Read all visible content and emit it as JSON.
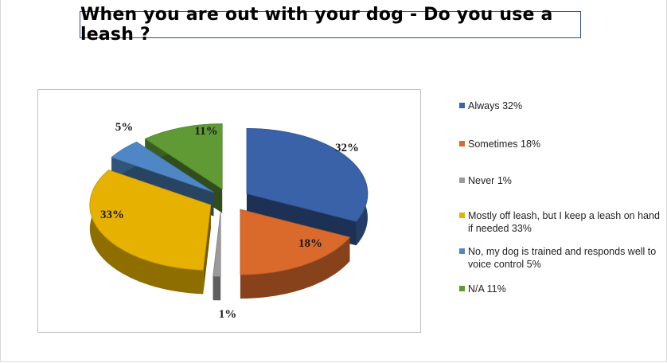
{
  "title": "When you are out with your dog - Do you use a leash ?",
  "chart_data": {
    "type": "pie",
    "style": "3d-exploded",
    "legend_position": "right",
    "slices": [
      {
        "label": "Always 32%",
        "value": 32,
        "data_label": "32%",
        "color": "#3a62a8"
      },
      {
        "label": "Sometimes 18%",
        "value": 18,
        "data_label": "18%",
        "color": "#d96a2b"
      },
      {
        "label": "Never 1%",
        "value": 1,
        "data_label": "1%",
        "color": "#9a9a9a"
      },
      {
        "label": "Mostly off leash, but I keep a leash on hand if needed  33%",
        "value": 33,
        "data_label": "33%",
        "color": "#e6b100"
      },
      {
        "label": "No, my dog is trained and responds well to voice control  5%",
        "value": 5,
        "data_label": "5%",
        "color": "#4f87c6"
      },
      {
        "label": "N/A  11%",
        "value": 11,
        "data_label": "11%",
        "color": "#5f9a35"
      }
    ]
  }
}
